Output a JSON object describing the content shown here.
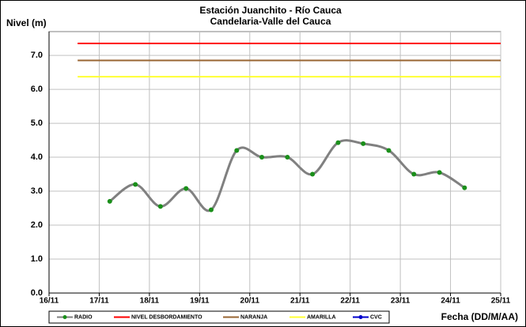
{
  "chart_data": {
    "type": "line",
    "title": "Estación Juanchito - Río Cauca",
    "subtitle": "Candelaria-Valle del Cauca",
    "y_label": "Nivel (m)",
    "x_label": "Fecha (DD/M/AA)",
    "xlim": [
      16,
      25
    ],
    "xticks": [
      {
        "value": 16,
        "label": "16/11"
      },
      {
        "value": 17,
        "label": "17/11"
      },
      {
        "value": 18,
        "label": "18/11"
      },
      {
        "value": 19,
        "label": "19/11"
      },
      {
        "value": 20,
        "label": "20/11"
      },
      {
        "value": 21,
        "label": "21/11"
      },
      {
        "value": 22,
        "label": "22/11"
      },
      {
        "value": 23,
        "label": "23/11"
      },
      {
        "value": 24,
        "label": "24/11"
      },
      {
        "value": 25,
        "label": "25/11"
      }
    ],
    "ylim": [
      0,
      7.7
    ],
    "yticks": [
      {
        "value": 0,
        "label": "0.0"
      },
      {
        "value": 1,
        "label": "1.0"
      },
      {
        "value": 2,
        "label": "2.0"
      },
      {
        "value": 3,
        "label": "3.0"
      },
      {
        "value": 4,
        "label": "4.0"
      },
      {
        "value": 5,
        "label": "5.0"
      },
      {
        "value": 6,
        "label": "6.0"
      },
      {
        "value": 7,
        "label": "7.0"
      }
    ],
    "grid": true,
    "legend": "bottom",
    "series": [
      {
        "name": "RADIO",
        "color": "#808080",
        "marker_color": "#1a8f1a",
        "smooth": true,
        "x": [
          17.21,
          17.72,
          18.22,
          18.73,
          19.23,
          19.74,
          20.24,
          20.75,
          21.25,
          21.76,
          22.26,
          22.77,
          23.27,
          23.78,
          24.28
        ],
        "values": [
          2.7,
          3.2,
          2.55,
          3.08,
          2.45,
          4.2,
          4.0,
          4.0,
          3.5,
          4.43,
          4.4,
          4.2,
          3.5,
          3.55,
          3.1
        ]
      },
      {
        "name": "NIVEL DESBORDAMIENTO",
        "color": "#ff0000",
        "x": [
          16.57,
          25
        ],
        "values": [
          7.35,
          7.35
        ]
      },
      {
        "name": "NARANJA",
        "color": "#996633",
        "x": [
          16.57,
          25
        ],
        "values": [
          6.85,
          6.85
        ]
      },
      {
        "name": "AMARILLA",
        "color": "#ffff33",
        "x": [
          16.57,
          25
        ],
        "values": [
          6.37,
          6.37
        ]
      },
      {
        "name": "CVC",
        "color": "#0000cc",
        "marker_color": "#0000cc",
        "x": [],
        "values": []
      }
    ]
  }
}
